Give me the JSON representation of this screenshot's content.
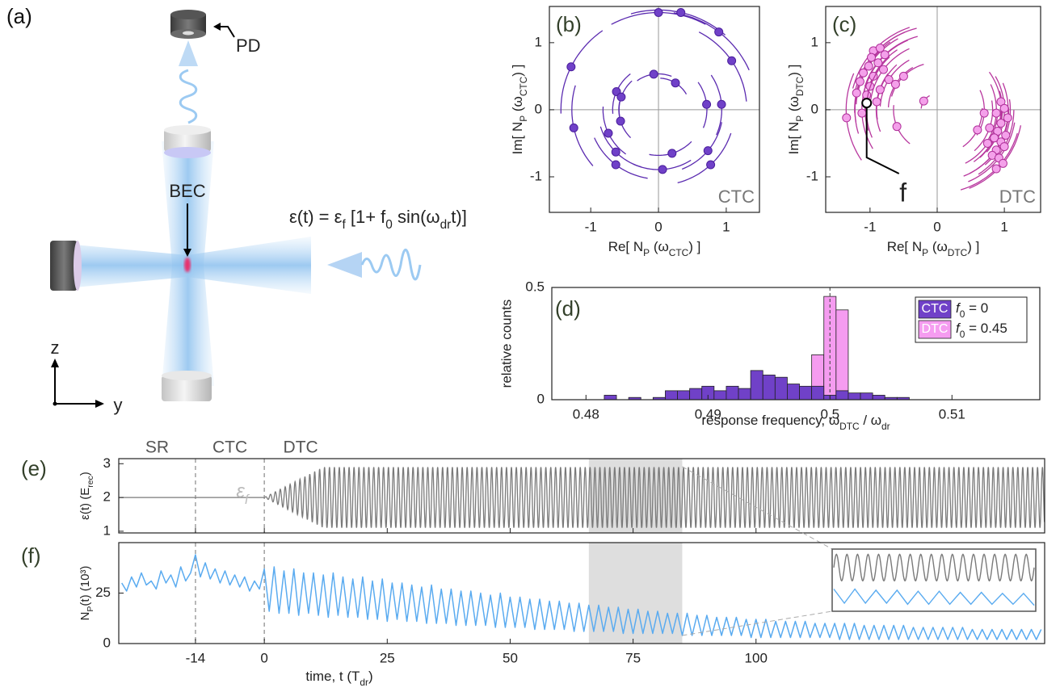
{
  "diagram": {
    "label": "(a)",
    "detector": "PD",
    "atoms": "BEC",
    "pump_equation": [
      "ε(t) = ε",
      "f",
      " [1+ f",
      "0",
      " sin(ω",
      "dr",
      "t)]"
    ],
    "axis_z": "z",
    "axis_y": "y"
  },
  "chart_data": [
    {
      "type": "scatter",
      "title": "(b)",
      "annotation": "CTC",
      "xlabel": [
        "Re[ N",
        "P",
        " (ω",
        "CTC",
        ") ]"
      ],
      "ylabel": [
        "Im[ N",
        "P",
        " (ω",
        "CTC",
        ") ]"
      ],
      "x": [
        0,
        0.33,
        0.89,
        1.08,
        -1.29,
        -0.62,
        -0.07,
        0.25,
        -0.55,
        -0.56,
        0.71,
        0.93,
        -1.25,
        -0.74,
        -0.63,
        0.73,
        0.2,
        -0.63,
        0.06,
        0.77
      ],
      "values": [
        1.45,
        1.45,
        1.16,
        0.73,
        0.64,
        0.27,
        0.53,
        0.4,
        0.19,
        -0.17,
        0.08,
        0.08,
        -0.27,
        -0.35,
        -0.63,
        -0.61,
        -0.65,
        -0.82,
        -0.89,
        -0.82
      ],
      "xlim": [
        -1.61,
        1.49
      ],
      "ylim": [
        -1.53,
        1.54
      ],
      "xticks": [
        -1,
        0,
        1
      ],
      "yticks": [
        -1,
        0,
        1
      ],
      "color": "#7041c8",
      "edge_color": "#4a1e9c",
      "arc_color": "#5b2bb0"
    },
    {
      "type": "scatter",
      "title": "(c)",
      "annotation": "DTC",
      "xlabel": [
        "Re[ N",
        "P",
        " (ω",
        "DTC",
        ") ]"
      ],
      "ylabel": [
        "Im[ N",
        "P",
        " (ω",
        "DTC",
        ") ]"
      ],
      "x": [
        -0.95,
        -0.85,
        -0.78,
        -0.98,
        -0.88,
        -1.02,
        -0.8,
        -1.1,
        -0.95,
        -0.72,
        -1.15,
        -1.0,
        -0.85,
        -1.2,
        -1.05,
        -0.9,
        -1.35,
        -1.12,
        -0.6,
        -0.62,
        -0.5,
        -0.2,
        0.95,
        1.0,
        0.88,
        1.05,
        0.95,
        0.78,
        0.9,
        1.02,
        0.85,
        0.95,
        0.75,
        1.0,
        0.88,
        0.82,
        0.92,
        0.98,
        0.88,
        0.7,
        0.6
      ],
      "values": [
        0.88,
        0.92,
        0.82,
        0.78,
        0.7,
        0.65,
        0.6,
        0.55,
        0.5,
        0.45,
        0.42,
        0.35,
        0.3,
        0.25,
        0.22,
        0.12,
        -0.12,
        -0.05,
        -0.25,
        0.38,
        0.5,
        0.13,
        0.12,
        0.02,
        -0.05,
        -0.12,
        -0.2,
        -0.27,
        -0.32,
        -0.38,
        -0.42,
        -0.48,
        -0.5,
        -0.55,
        -0.6,
        -0.68,
        -0.72,
        -0.8,
        -0.88,
        -0.05,
        -0.3
      ],
      "marked_point": {
        "x": -1.05,
        "y": 0.1,
        "label": "f"
      },
      "xlim": [
        -1.66,
        1.54
      ],
      "ylim": [
        -1.53,
        1.54
      ],
      "xticks": [
        -1,
        0,
        1
      ],
      "yticks": [
        -1,
        0,
        1
      ],
      "color": "#f4a0ea",
      "edge_color": "#b0309a",
      "arc_color": "#b8379e"
    },
    {
      "type": "histogram",
      "title": "(d)",
      "xlabel": [
        "response frequency, ω",
        "DTC",
        " / ω",
        "dr"
      ],
      "ylabel": "relative counts",
      "bins": [
        0.4815,
        0.4825,
        0.4835,
        0.4845,
        0.4855,
        0.4865,
        0.4875,
        0.4885,
        0.4895,
        0.4905,
        0.4915,
        0.4925,
        0.4935,
        0.4945,
        0.4955,
        0.4965,
        0.4975,
        0.4985,
        0.4995,
        0.5005,
        0.5015,
        0.5025,
        0.5035,
        0.5045,
        0.5055,
        0.5065,
        0.5075,
        0.5085,
        0.5095,
        0.5105,
        0.5115
      ],
      "series": [
        {
          "name": "CTC",
          "color": "#7041c8",
          "legend_label": [
            "f",
            "0",
            " = 0"
          ],
          "values": [
            0.02,
            0,
            0.01,
            0,
            0.01,
            0.04,
            0.04,
            0.05,
            0.06,
            0.04,
            0.06,
            0.05,
            0.13,
            0.11,
            0.1,
            0.07,
            0.06,
            0.06,
            0.02,
            0.04,
            0.03,
            0.03,
            0.02,
            0.01,
            0.01,
            0,
            0,
            0,
            0,
            0
          ]
        },
        {
          "name": "DTC",
          "color": "#f59cf0",
          "legend_label": [
            "f",
            "0",
            " = 0.45"
          ],
          "values": [
            0,
            0,
            0,
            0,
            0,
            0,
            0,
            0,
            0,
            0,
            0,
            0,
            0,
            0,
            0,
            0,
            0,
            0.2,
            0.46,
            0.4,
            0,
            0,
            0,
            0,
            0,
            0,
            0,
            0,
            0,
            0
          ]
        }
      ],
      "vline": 0.5,
      "xlim": [
        0.4772,
        0.5172
      ],
      "ylim": [
        0,
        0.5
      ],
      "xticks": [
        0.48,
        0.49,
        0.5,
        0.51
      ],
      "yticks": [
        0,
        0.5
      ],
      "legend": "upper right"
    },
    {
      "type": "line",
      "title": "(e)",
      "phases": [
        "SR",
        "CTC",
        "DTC"
      ],
      "curve_label": [
        "ε",
        "f"
      ],
      "ylabel": [
        "ε(t)  (E",
        "rec",
        ")"
      ],
      "eps_f": 2,
      "f0": 0.45,
      "ramp": [
        0,
        12
      ],
      "highlight": [
        66,
        85
      ],
      "xlim": [
        -29.6,
        158.7
      ],
      "ylim": [
        0.95,
        3.15
      ],
      "yticks": [
        1,
        2,
        3
      ],
      "color": "#7a7a7a"
    },
    {
      "type": "line",
      "title": "(f)",
      "xlabel": [
        "time, t  (T",
        "dr",
        ")"
      ],
      "ylabel": [
        "N",
        "P",
        "(t)  (10³)"
      ],
      "x": [
        -29,
        -28,
        -27,
        -26,
        -25,
        -24,
        -23,
        -22,
        -21,
        -20,
        -19,
        -18,
        -17,
        -16,
        -15,
        -14,
        -13,
        -12,
        -11,
        -10,
        -9,
        -8,
        -7,
        -6,
        -5,
        -4,
        -3,
        -2,
        -1,
        0,
        1,
        2,
        3,
        4,
        5,
        6,
        7,
        8,
        9,
        10,
        11,
        12,
        13,
        14,
        15,
        16,
        17,
        18,
        19,
        20,
        21,
        22,
        23,
        24,
        25,
        26,
        27,
        28,
        29,
        30,
        31,
        32,
        33,
        34,
        35,
        36,
        37,
        38,
        39,
        40,
        41,
        42,
        43,
        44,
        45,
        46,
        47,
        48,
        49,
        50,
        51,
        52,
        53,
        54,
        55,
        56,
        57,
        58,
        59,
        60,
        61,
        62,
        63,
        64,
        65,
        66,
        67,
        68,
        69,
        70,
        71,
        72,
        73,
        74,
        75,
        76,
        77,
        78,
        79,
        80,
        81,
        82,
        83,
        84,
        85,
        86,
        87,
        88,
        89,
        90,
        91,
        92,
        93,
        94,
        95,
        96,
        97,
        98,
        99,
        100,
        101,
        102,
        103,
        104,
        105,
        106,
        107,
        108,
        109,
        110,
        111,
        112,
        113,
        114,
        115,
        116,
        117,
        118,
        119,
        120,
        121,
        122,
        123,
        124,
        125,
        126,
        127,
        128,
        129,
        130,
        131,
        132,
        133,
        134,
        135,
        136,
        137,
        138,
        139,
        140,
        141,
        142,
        143,
        144,
        145,
        146,
        147,
        148,
        149,
        150,
        151,
        152,
        153,
        154,
        155,
        156,
        157,
        158
      ],
      "values": [
        30,
        26,
        33,
        28,
        35,
        29,
        31,
        27,
        36,
        30,
        34,
        28,
        38,
        31,
        35,
        44,
        33,
        40,
        32,
        37,
        30,
        36,
        29,
        34,
        28,
        33,
        26,
        31,
        27,
        37,
        16,
        38,
        15,
        36,
        15,
        37,
        14,
        35,
        15,
        35,
        14,
        34,
        13,
        35,
        14,
        33,
        13,
        32,
        13,
        33,
        12,
        31,
        12,
        32,
        11,
        30,
        12,
        30,
        11,
        29,
        11,
        28,
        10,
        29,
        10,
        27,
        10,
        27,
        9,
        26,
        9,
        26,
        9,
        25,
        9,
        24,
        8,
        25,
        8,
        23,
        8,
        23,
        8,
        22,
        7,
        22,
        7,
        21,
        7,
        21,
        7,
        20,
        6,
        20,
        6,
        19,
        6,
        19,
        6,
        18,
        6,
        18,
        5,
        17,
        5,
        17,
        5,
        16,
        5,
        16,
        5,
        15,
        5,
        15,
        4,
        15,
        4,
        14,
        4,
        14,
        4,
        13,
        4,
        13,
        4,
        13,
        4,
        12,
        3,
        12,
        3,
        12,
        3,
        11,
        3,
        11,
        3,
        11,
        3,
        11,
        3,
        10,
        3,
        10,
        3,
        10,
        2,
        10,
        2,
        10,
        2,
        9,
        2,
        9,
        2,
        9,
        2,
        9,
        2,
        9,
        2,
        8,
        2,
        8,
        2,
        8,
        2,
        8,
        2,
        8,
        2,
        8,
        2,
        7,
        2,
        7,
        2,
        7,
        2,
        7,
        2,
        7,
        2,
        7,
        2,
        7,
        2,
        7
      ],
      "xlim": [
        -29.6,
        158.7
      ],
      "ylim": [
        0,
        50
      ],
      "xticks": [
        -14,
        0,
        25,
        50,
        75,
        100
      ],
      "yticks": [
        0,
        25
      ],
      "color": "#5aabf0"
    }
  ]
}
